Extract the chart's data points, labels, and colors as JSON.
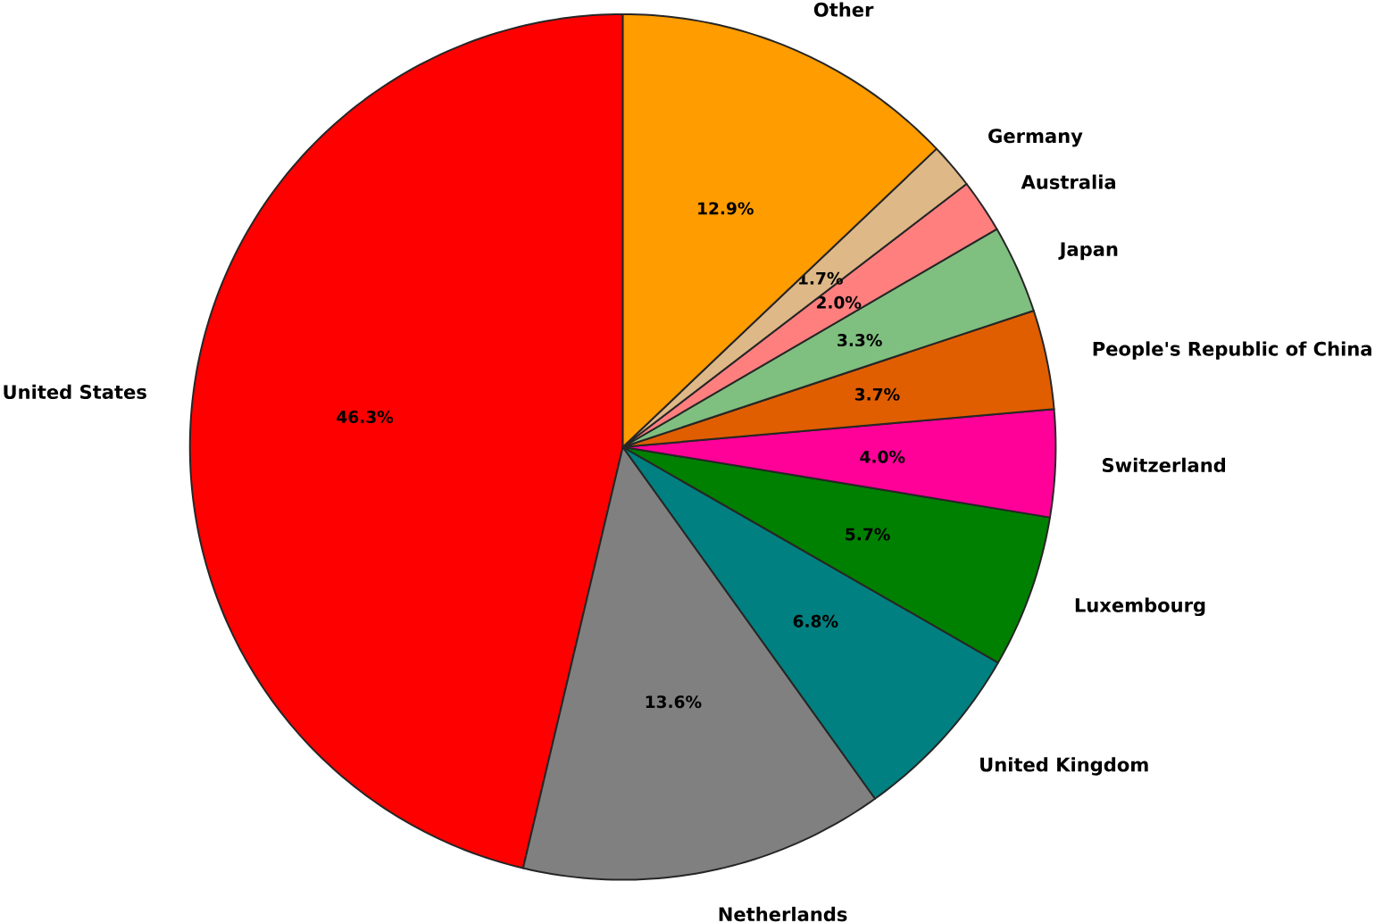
{
  "chart_data": {
    "type": "pie",
    "categories": [
      "United States",
      "Netherlands",
      "United Kingdom",
      "Luxembourg",
      "Switzerland",
      "People's Republic of China",
      "Japan",
      "Australia",
      "Germany",
      "Other"
    ],
    "values": [
      46.3,
      13.6,
      6.8,
      5.7,
      4.0,
      3.7,
      3.3,
      2.0,
      1.7,
      12.9
    ],
    "colors": [
      "#ff0000",
      "#808080",
      "#008080",
      "#008000",
      "#ff0099",
      "#e05e00",
      "#7fbf7f",
      "#ff7f7f",
      "#deb887",
      "#ff9c00"
    ],
    "value_labels": [
      "46.3%",
      "13.6%",
      "6.8%",
      "5.7%",
      "4.0%",
      "3.7%",
      "3.3%",
      "2.0%",
      "1.7%",
      "12.9%"
    ]
  }
}
